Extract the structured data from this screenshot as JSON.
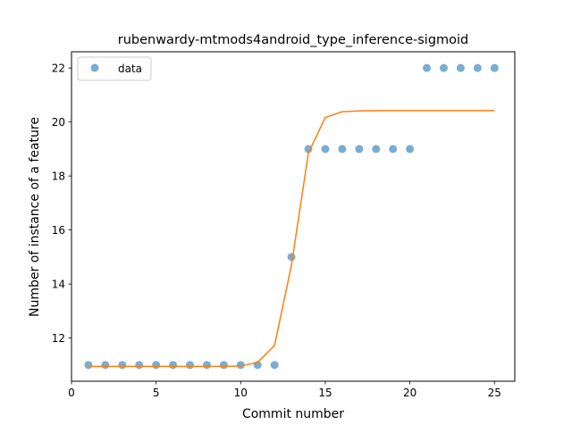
{
  "chart_data": {
    "type": "scatter",
    "title": "rubenwardy-mtmods4android_type_inference-sigmoid",
    "xlabel": "Commit number",
    "ylabel": "Number of instance of a feature",
    "xlim": [
      0,
      26.2
    ],
    "ylim": [
      10.4,
      22.6
    ],
    "xticks": [
      0,
      5,
      10,
      15,
      20,
      25
    ],
    "yticks": [
      12,
      14,
      16,
      18,
      20,
      22
    ],
    "grid": false,
    "legend_position": "top-left",
    "series": [
      {
        "name": "data",
        "kind": "scatter",
        "color": "#1f77b4",
        "x": [
          1,
          2,
          3,
          4,
          5,
          6,
          7,
          8,
          9,
          10,
          11,
          12,
          13,
          14,
          15,
          16,
          17,
          18,
          19,
          20,
          21,
          22,
          23,
          24,
          25
        ],
        "y": [
          11,
          11,
          11,
          11,
          11,
          11,
          11,
          11,
          11,
          11,
          11,
          11,
          15,
          19,
          19,
          19,
          19,
          19,
          19,
          19,
          22,
          22,
          22,
          22,
          22
        ]
      },
      {
        "kind": "line",
        "color": "#ff7f0e",
        "x": [
          1,
          2,
          3,
          4,
          5,
          6,
          7,
          8,
          9,
          10,
          11,
          12,
          13,
          14,
          15,
          16,
          17,
          18,
          19,
          20,
          21,
          22,
          23,
          24,
          25
        ],
        "y": [
          10.95,
          10.95,
          10.95,
          10.95,
          10.95,
          10.95,
          10.95,
          10.95,
          10.95,
          10.96,
          11.1,
          11.72,
          14.7,
          18.85,
          20.17,
          20.38,
          20.41,
          20.42,
          20.42,
          20.42,
          20.42,
          20.42,
          20.42,
          20.42,
          20.42
        ]
      }
    ]
  }
}
